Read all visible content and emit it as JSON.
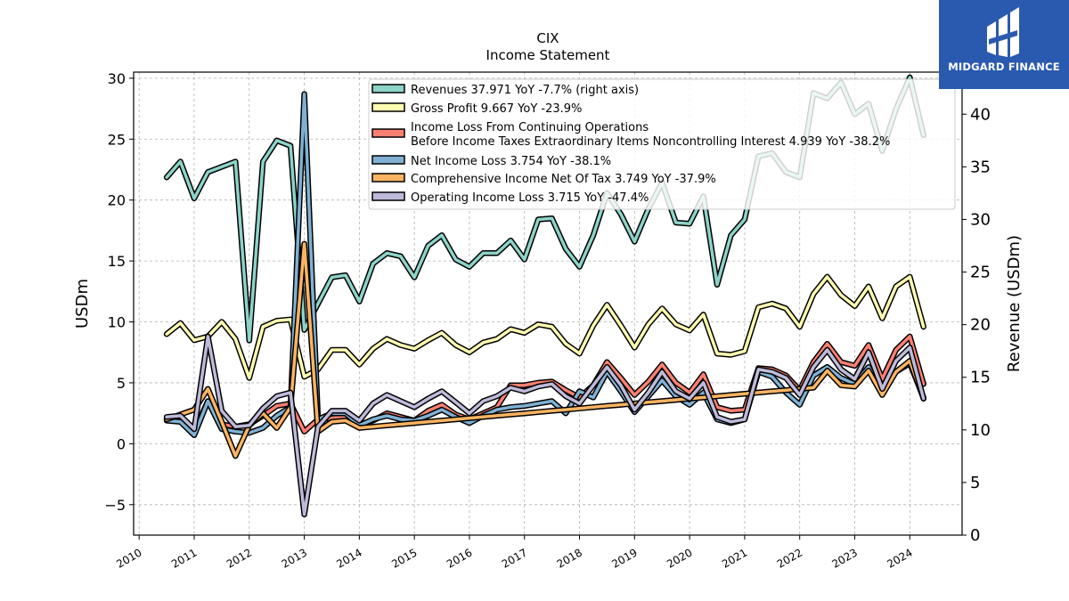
{
  "chart_data": {
    "type": "line",
    "title": "CIX",
    "subtitle": "Income Statement",
    "ylabel_left": "USDm",
    "ylabel_right": "Revenue (USDm)",
    "ylim_left": [
      -7.5,
      30.5
    ],
    "ylim_right": [
      0,
      44
    ],
    "yticks_left": [
      "−5",
      "0",
      "5",
      "10",
      "15",
      "20",
      "25",
      "30"
    ],
    "yticks_right": [
      "0",
      "5",
      "10",
      "15",
      "20",
      "25",
      "30",
      "35",
      "40"
    ],
    "xticks": [
      "2010",
      "2011",
      "2012",
      "2013",
      "2014",
      "2015",
      "2016",
      "2017",
      "2018",
      "2019",
      "2020",
      "2021",
      "2022",
      "2023",
      "2024"
    ],
    "grid": true,
    "legend_position": "top-right",
    "x": [
      2010.5,
      2010.75,
      2011.0,
      2011.25,
      2011.5,
      2011.75,
      2012.0,
      2012.25,
      2012.5,
      2012.75,
      2013.0,
      2013.25,
      2013.5,
      2013.75,
      2014.0,
      2014.25,
      2014.5,
      2014.75,
      2015.0,
      2015.25,
      2015.5,
      2015.75,
      2016.0,
      2016.25,
      2016.5,
      2016.75,
      2017.0,
      2017.25,
      2017.5,
      2017.75,
      2018.0,
      2018.25,
      2018.5,
      2018.75,
      2019.0,
      2019.25,
      2019.5,
      2019.75,
      2020.0,
      2020.25,
      2020.5,
      2020.75,
      2021.0,
      2021.25,
      2021.5,
      2021.75,
      2022.0,
      2022.25,
      2022.5,
      2022.75,
      2023.0,
      2023.25,
      2023.5,
      2023.75,
      2024.0,
      2024.25
    ],
    "series": [
      {
        "name": "Revenues",
        "legend": "Revenues  37.971 YoY -7.7% (right axis)",
        "axis": "right",
        "color": "#8dd3c7",
        "values": [
          34.0,
          35.5,
          32.0,
          34.5,
          35.0,
          35.5,
          18.5,
          35.5,
          37.5,
          37.0,
          19.5,
          22.0,
          24.5,
          24.7,
          22.2,
          25.8,
          26.8,
          26.5,
          24.5,
          27.5,
          28.5,
          26.2,
          25.5,
          26.8,
          26.8,
          28.0,
          26.2,
          30.0,
          30.1,
          27.2,
          25.5,
          28.5,
          32.5,
          30.5,
          27.9,
          31.0,
          33.5,
          29.7,
          29.6,
          32.2,
          23.8,
          28.5,
          30.0,
          36.0,
          36.3,
          34.5,
          34.0,
          42.0,
          41.5,
          43.0,
          40.0,
          41.0,
          36.5,
          40.5,
          43.5,
          38.0
        ]
      },
      {
        "name": "Gross Profit",
        "legend": "Gross Profit  9.667 YoY -23.9%",
        "axis": "left",
        "color": "#ffffb3",
        "values": [
          9.0,
          9.9,
          8.5,
          8.8,
          10.0,
          8.6,
          5.4,
          9.6,
          10.1,
          10.2,
          5.5,
          6.1,
          7.7,
          7.7,
          6.5,
          7.8,
          8.6,
          8.1,
          7.8,
          8.5,
          9.1,
          8.1,
          7.5,
          8.3,
          8.6,
          9.4,
          9.1,
          9.8,
          9.6,
          8.2,
          7.4,
          9.7,
          11.4,
          9.7,
          7.9,
          9.8,
          11.1,
          9.8,
          9.3,
          10.6,
          7.4,
          7.3,
          7.6,
          11.2,
          11.5,
          11.1,
          9.6,
          12.3,
          13.7,
          12.2,
          11.3,
          12.9,
          10.3,
          12.9,
          13.7,
          9.6
        ]
      },
      {
        "name": "Income Loss From Continuing Operations Before Income Taxes Extraordinary Items Noncontrolling Interest",
        "legend_line1": "Income Loss From Continuing Operations",
        "legend_line2": "Before Income Taxes Extraordinary Items Noncontrolling Interest  4.939 YoY -38.2%",
        "axis": "left",
        "color": "#fb8072",
        "values": [
          2.0,
          2.0,
          1.0,
          3.5,
          1.6,
          1.4,
          1.6,
          2.3,
          3.1,
          3.3,
          1.0,
          2.0,
          2.1,
          2.2,
          1.6,
          1.9,
          2.5,
          2.2,
          1.9,
          2.7,
          3.2,
          2.4,
          2.0,
          2.5,
          3.0,
          4.8,
          4.8,
          5.0,
          5.1,
          4.4,
          3.8,
          4.8,
          6.7,
          5.4,
          4.0,
          5.1,
          6.5,
          5.0,
          4.2,
          5.7,
          3.0,
          2.7,
          2.8,
          6.2,
          6.1,
          5.6,
          4.4,
          6.7,
          8.2,
          6.7,
          6.4,
          8.1,
          5.3,
          7.7,
          8.8,
          4.9
        ]
      },
      {
        "name": "Net Income Loss",
        "legend": "Net Income Loss  3.754 YoY -38.1%",
        "axis": "left",
        "color": "#80b1d3",
        "values": [
          1.9,
          1.8,
          0.7,
          3.5,
          1.2,
          1.0,
          0.9,
          1.3,
          2.3,
          3.0,
          28.7,
          2.0,
          2.5,
          2.5,
          1.5,
          2.0,
          2.3,
          2.0,
          1.9,
          2.3,
          2.8,
          2.2,
          1.7,
          2.3,
          2.8,
          3.0,
          3.1,
          3.3,
          3.5,
          2.5,
          4.3,
          3.8,
          5.9,
          4.3,
          2.6,
          3.9,
          5.2,
          3.9,
          3.2,
          4.2,
          2.0,
          1.7,
          2.0,
          5.9,
          5.5,
          4.2,
          3.2,
          5.6,
          6.3,
          5.4,
          4.9,
          6.3,
          4.3,
          5.9,
          6.6,
          3.8
        ]
      },
      {
        "name": "Comprehensive Income Net Of Tax",
        "legend": "Comprehensive Income Net Of Tax  3.749 YoY -37.9%",
        "axis": "left",
        "color": "#fdb462",
        "values": [
          2.0,
          2.4,
          2.8,
          4.5,
          1.8,
          -1.0,
          1.5,
          2.5,
          1.3,
          3.0,
          16.4,
          1.0,
          1.8,
          1.9,
          1.3,
          1.4,
          1.5,
          1.6,
          1.7,
          1.8,
          1.9,
          2.0,
          2.1,
          2.2,
          2.3,
          2.4,
          2.5,
          2.6,
          2.7,
          2.8,
          2.9,
          3.0,
          3.1,
          3.2,
          3.3,
          3.4,
          3.5,
          3.6,
          3.7,
          3.8,
          3.9,
          4.0,
          4.1,
          4.2,
          4.3,
          4.4,
          4.5,
          4.6,
          6.0,
          4.8,
          4.7,
          6.0,
          4.0,
          5.9,
          6.8,
          3.7
        ]
      },
      {
        "name": "Operating Income Loss",
        "legend": "Operating Income Loss  3.715 YoY -47.4%",
        "axis": "left",
        "color": "#bebada",
        "values": [
          2.2,
          2.3,
          1.2,
          8.8,
          2.7,
          1.4,
          1.5,
          2.9,
          3.9,
          4.2,
          -5.8,
          1.4,
          2.7,
          2.7,
          1.9,
          3.3,
          4.0,
          3.5,
          3.0,
          3.7,
          4.3,
          3.4,
          2.5,
          3.5,
          3.9,
          4.6,
          4.3,
          4.7,
          4.9,
          3.9,
          3.3,
          4.8,
          6.3,
          4.8,
          2.8,
          4.2,
          5.9,
          4.3,
          3.7,
          5.0,
          2.2,
          1.8,
          2.0,
          6.1,
          5.9,
          5.4,
          4.0,
          6.3,
          7.7,
          6.1,
          5.3,
          7.5,
          4.5,
          6.8,
          7.9,
          3.7
        ]
      }
    ]
  },
  "logo": {
    "text": "MIDGARD FINANCE",
    "background": "#2a5ab0",
    "color": "#ffffff"
  }
}
